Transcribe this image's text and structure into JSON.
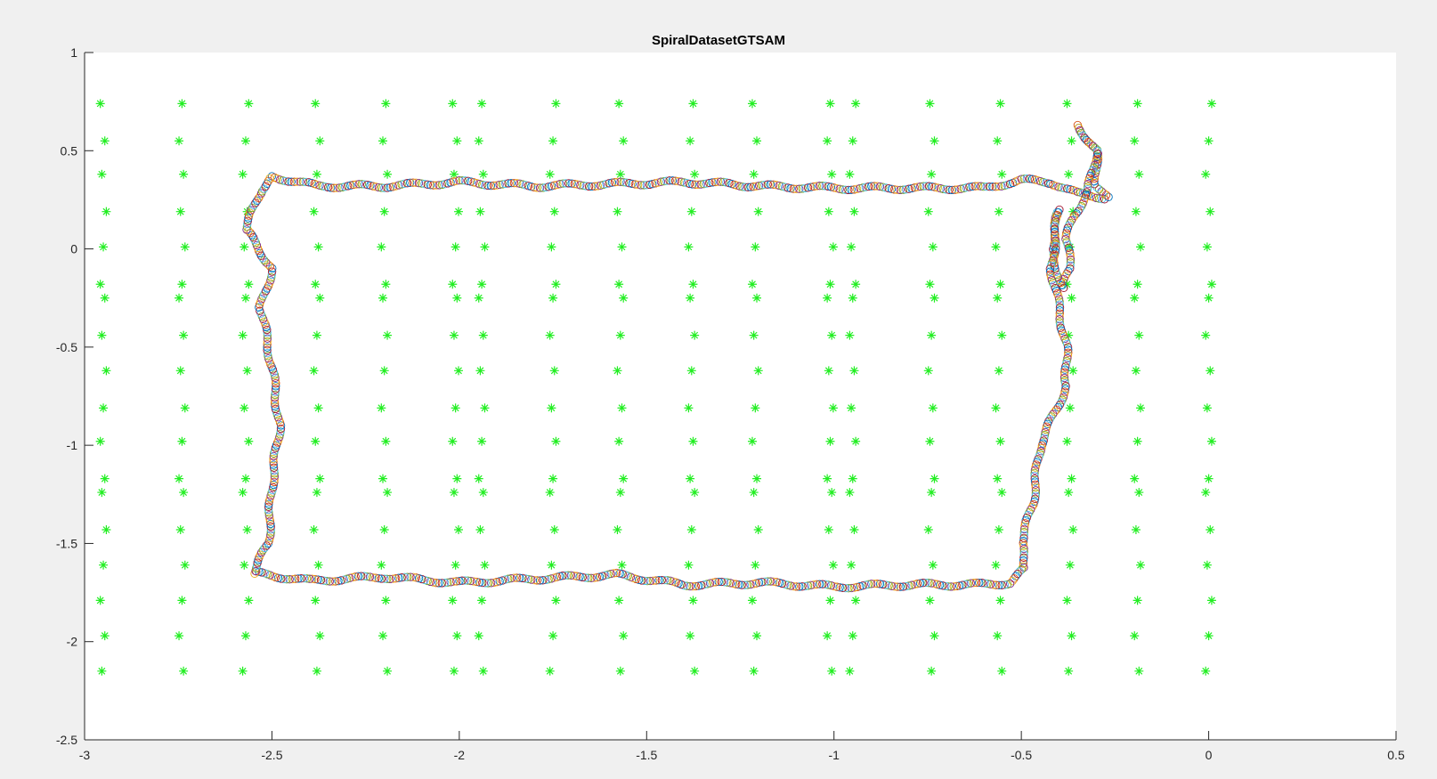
{
  "chart_data": {
    "type": "scatter",
    "title": "SpiralDatasetGTSAM",
    "xlabel": "",
    "ylabel": "",
    "xlim": [
      -3,
      0.5
    ],
    "ylim": [
      -2.5,
      1
    ],
    "xticks": [
      "-3",
      "-2.5",
      "-2",
      "-1.5",
      "-1",
      "-0.5",
      "0",
      "0.5"
    ],
    "yticks": [
      "1",
      "0.5",
      "0",
      "-0.5",
      "-1",
      "-1.5",
      "-2",
      "-2.5"
    ],
    "grid": false,
    "legend": "none",
    "landmarks": {
      "marker": "*",
      "color": "#22ee22",
      "columns_x": [
        -2.95,
        -2.74,
        -2.57,
        -2.38,
        -2.2,
        -2.01,
        -1.94,
        -1.75,
        -1.57,
        -1.38,
        -1.21,
        -1.01,
        -0.95,
        -0.74,
        -0.56,
        -0.37,
        -0.19,
        0.0
      ],
      "rows_y": [
        0.74,
        0.55,
        0.38,
        0.19,
        0.01,
        -0.18,
        -0.25,
        -0.44,
        -0.62,
        -0.81,
        -0.98,
        -1.17,
        -1.24,
        -1.43,
        -1.61,
        -1.79,
        -1.97,
        -2.15
      ]
    },
    "trajectory": {
      "marker": "o",
      "colors": [
        "#0072bd",
        "#d95319",
        "#edb120",
        "#7e2f8e",
        "#77ac30",
        "#4dbeee",
        "#a2142f"
      ],
      "path": [
        [
          -2.5,
          0.37
        ],
        [
          -2.38,
          0.32
        ],
        [
          -2.2,
          0.32
        ],
        [
          -2.0,
          0.34
        ],
        [
          -1.8,
          0.32
        ],
        [
          -1.6,
          0.33
        ],
        [
          -1.4,
          0.34
        ],
        [
          -1.28,
          0.33
        ],
        [
          -1.2,
          0.32
        ],
        [
          -1.0,
          0.31
        ],
        [
          -0.8,
          0.31
        ],
        [
          -0.6,
          0.31
        ],
        [
          -0.5,
          0.35
        ],
        [
          -0.42,
          0.34
        ],
        [
          -0.35,
          0.28
        ],
        [
          -0.27,
          0.26
        ],
        [
          -0.3,
          0.33
        ],
        [
          -0.3,
          0.5
        ],
        [
          -0.35,
          0.63
        ],
        [
          -0.3,
          0.5
        ],
        [
          -0.32,
          0.3
        ],
        [
          -0.36,
          0.17
        ],
        [
          -0.38,
          0.05
        ],
        [
          -0.37,
          -0.1
        ],
        [
          -0.39,
          -0.2
        ],
        [
          -0.42,
          0.0
        ],
        [
          -0.4,
          0.2
        ],
        [
          -0.42,
          -0.1
        ],
        [
          -0.38,
          -0.5
        ],
        [
          -0.38,
          -0.7
        ],
        [
          -0.45,
          -1.0
        ],
        [
          -0.47,
          -1.3
        ],
        [
          -0.5,
          -1.5
        ],
        [
          -0.49,
          -1.63
        ],
        [
          -0.53,
          -1.7
        ],
        [
          -0.62,
          -1.71
        ],
        [
          -0.8,
          -1.71
        ],
        [
          -1.0,
          -1.72
        ],
        [
          -1.2,
          -1.7
        ],
        [
          -1.4,
          -1.71
        ],
        [
          -1.58,
          -1.66
        ],
        [
          -1.8,
          -1.68
        ],
        [
          -2.0,
          -1.7
        ],
        [
          -2.2,
          -1.67
        ],
        [
          -2.4,
          -1.69
        ],
        [
          -2.55,
          -1.65
        ],
        [
          -2.51,
          -1.5
        ],
        [
          -2.5,
          -1.2
        ],
        [
          -2.48,
          -0.9
        ],
        [
          -2.5,
          -0.6
        ],
        [
          -2.53,
          -0.3
        ],
        [
          -2.5,
          -0.1
        ],
        [
          -2.57,
          0.1
        ],
        [
          -2.53,
          0.3
        ],
        [
          -2.5,
          0.37
        ]
      ]
    }
  }
}
